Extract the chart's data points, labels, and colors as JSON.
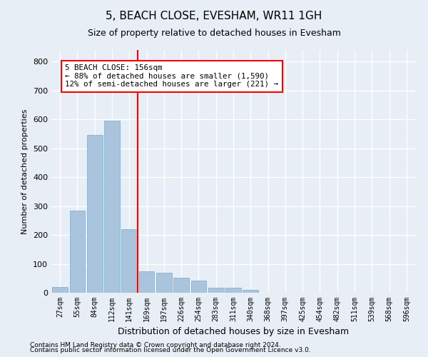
{
  "title": "5, BEACH CLOSE, EVESHAM, WR11 1GH",
  "subtitle": "Size of property relative to detached houses in Evesham",
  "xlabel": "Distribution of detached houses by size in Evesham",
  "ylabel": "Number of detached properties",
  "categories": [
    "27sqm",
    "55sqm",
    "84sqm",
    "112sqm",
    "141sqm",
    "169sqm",
    "197sqm",
    "226sqm",
    "254sqm",
    "283sqm",
    "311sqm",
    "340sqm",
    "368sqm",
    "397sqm",
    "425sqm",
    "454sqm",
    "482sqm",
    "511sqm",
    "539sqm",
    "568sqm",
    "596sqm"
  ],
  "values": [
    20,
    285,
    545,
    595,
    220,
    75,
    68,
    52,
    42,
    18,
    18,
    10,
    0,
    0,
    0,
    0,
    0,
    0,
    0,
    0,
    0
  ],
  "bar_color": "#aac4de",
  "bar_edge_color": "#7aaac8",
  "red_line_x": 4.5,
  "annotation_text": "5 BEACH CLOSE: 156sqm\n← 88% of detached houses are smaller (1,590)\n12% of semi-detached houses are larger (221) →",
  "footer_line1": "Contains HM Land Registry data © Crown copyright and database right 2024.",
  "footer_line2": "Contains public sector information licensed under the Open Government Licence v3.0.",
  "bg_color": "#e8eef5",
  "plot_bg_color": "#e8eef5",
  "grid_color": "#ffffff",
  "ylim": [
    0,
    840
  ],
  "yticks": [
    0,
    100,
    200,
    300,
    400,
    500,
    600,
    700,
    800
  ]
}
